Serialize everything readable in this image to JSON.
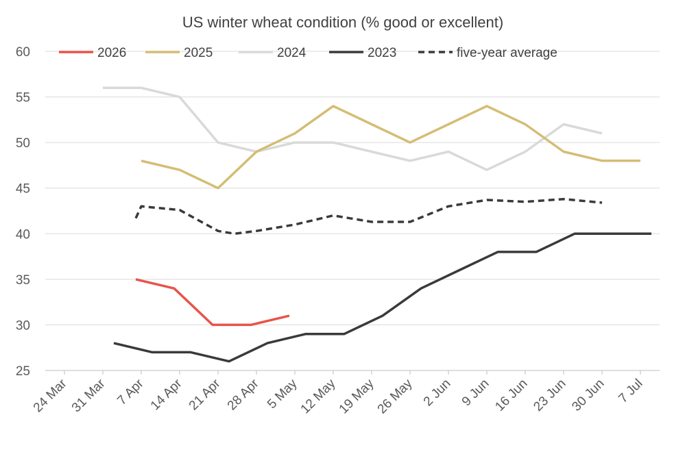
{
  "chart_data": {
    "type": "line",
    "title": "US winter wheat condition (% good or excellent)",
    "xlabel": "",
    "ylabel": "",
    "ylim": [
      25,
      60
    ],
    "yticks": [
      25,
      30,
      35,
      40,
      45,
      50,
      55,
      60
    ],
    "xticks": [
      "24 Mar",
      "31 Mar",
      "7 Apr",
      "14 Apr",
      "21 Apr",
      "28 Apr",
      "5 May",
      "12 May",
      "19 May",
      "26 May",
      "2 Jun",
      "9 Jun",
      "16 Jun",
      "23 Jun",
      "30 Jun",
      "7 Jul"
    ],
    "grid": "horizontal",
    "legend": "top",
    "series": [
      {
        "name": "2026",
        "color": "#e8534a",
        "dash": false,
        "points": [
          [
            "6 Apr",
            35
          ],
          [
            "13 Apr",
            34
          ],
          [
            "20 Apr",
            30
          ],
          [
            "27 Apr",
            30
          ],
          [
            "4 May",
            31
          ]
        ]
      },
      {
        "name": "2025",
        "color": "#d4bd74",
        "dash": false,
        "points": [
          [
            "7 Apr",
            48
          ],
          [
            "14 Apr",
            47
          ],
          [
            "21 Apr",
            45
          ],
          [
            "28 Apr",
            49
          ],
          [
            "5 May",
            51
          ],
          [
            "12 May",
            54
          ],
          [
            "19 May",
            52
          ],
          [
            "26 May",
            50
          ],
          [
            "2 Jun",
            52
          ],
          [
            "9 Jun",
            54
          ],
          [
            "16 Jun",
            52
          ],
          [
            "23 Jun",
            49
          ],
          [
            "30 Jun",
            48
          ],
          [
            "7 Jul",
            48
          ]
        ]
      },
      {
        "name": "2024",
        "color": "#d9d9d9",
        "dash": false,
        "points": [
          [
            "31 Mar",
            56
          ],
          [
            "7 Apr",
            56
          ],
          [
            "14 Apr",
            55
          ],
          [
            "21 Apr",
            50
          ],
          [
            "28 Apr",
            49
          ],
          [
            "5 May",
            50
          ],
          [
            "12 May",
            50
          ],
          [
            "19 May",
            49
          ],
          [
            "26 May",
            48
          ],
          [
            "2 Jun",
            49
          ],
          [
            "9 Jun",
            47
          ],
          [
            "16 Jun",
            49
          ],
          [
            "23 Jun",
            52
          ],
          [
            "30 Jun",
            51
          ]
        ]
      },
      {
        "name": "2023",
        "color": "#3a3a3a",
        "dash": false,
        "points": [
          [
            "2 Apr",
            28
          ],
          [
            "9 Apr",
            27
          ],
          [
            "16 Apr",
            27
          ],
          [
            "23 Apr",
            26
          ],
          [
            "30 Apr",
            28
          ],
          [
            "7 May",
            29
          ],
          [
            "14 May",
            29
          ],
          [
            "21 May",
            31
          ],
          [
            "28 May",
            34
          ],
          [
            "4 Jun",
            36
          ],
          [
            "11 Jun",
            38
          ],
          [
            "18 Jun",
            38
          ],
          [
            "25 Jun",
            40
          ],
          [
            "2 Jul",
            40
          ],
          [
            "9 Jul",
            40
          ]
        ]
      },
      {
        "name": "five-year average",
        "color": "#3a3a3a",
        "dash": true,
        "points": [
          [
            "6 Apr",
            41.7
          ],
          [
            "7 Apr",
            43
          ],
          [
            "14 Apr",
            42.6
          ],
          [
            "21 Apr",
            40.3
          ],
          [
            "24 Apr",
            40
          ],
          [
            "28 Apr",
            40.3
          ],
          [
            "5 May",
            41
          ],
          [
            "12 May",
            42
          ],
          [
            "19 May",
            41.3
          ],
          [
            "26 May",
            41.3
          ],
          [
            "2 Jun",
            43
          ],
          [
            "9 Jun",
            43.7
          ],
          [
            "16 Jun",
            43.5
          ],
          [
            "23 Jun",
            43.8
          ],
          [
            "30 Jun",
            43.4
          ]
        ]
      }
    ]
  }
}
